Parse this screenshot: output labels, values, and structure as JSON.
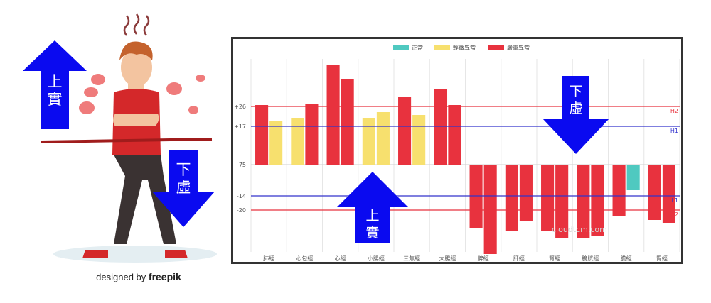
{
  "illustration": {
    "up_label": "上\n實",
    "down_label": "下\n虛",
    "credit_prefix": "designed by",
    "credit_brand": "freepik"
  },
  "chart_data": {
    "type": "bar",
    "legend": [
      {
        "name": "正常",
        "color": "#4fc9c0"
      },
      {
        "name": "輕微異常",
        "color": "#f7e06e"
      },
      {
        "name": "嚴重異常",
        "color": "#e8323e"
      }
    ],
    "legend_position": "top-center",
    "categories": [
      "肺經",
      "心包經",
      "心經",
      "小腸經",
      "三焦經",
      "大腸經",
      "脾經",
      "肝經",
      "腎經",
      "膀胱經",
      "膽經",
      "胃經"
    ],
    "bars": [
      [
        {
          "value": 42,
          "status": "嚴重異常"
        },
        {
          "value": 31,
          "status": "輕微異常"
        }
      ],
      [
        {
          "value": 33,
          "status": "輕微異常"
        },
        {
          "value": 43,
          "status": "嚴重異常"
        }
      ],
      [
        {
          "value": 70,
          "status": "嚴重異常"
        },
        {
          "value": 60,
          "status": "嚴重異常"
        }
      ],
      [
        {
          "value": 33,
          "status": "輕微異常"
        },
        {
          "value": 37,
          "status": "輕微異常"
        }
      ],
      [
        {
          "value": 48,
          "status": "嚴重異常"
        },
        {
          "value": 35,
          "status": "輕微異常"
        }
      ],
      [
        {
          "value": 53,
          "status": "嚴重異常"
        },
        {
          "value": 42,
          "status": "嚴重異常"
        }
      ],
      [
        {
          "value": -45,
          "status": "嚴重異常"
        },
        {
          "value": -63,
          "status": "嚴重異常"
        }
      ],
      [
        {
          "value": -47,
          "status": "嚴重異常"
        },
        {
          "value": -40,
          "status": "嚴重異常"
        }
      ],
      [
        {
          "value": -47,
          "status": "嚴重異常"
        },
        {
          "value": -52,
          "status": "嚴重異常"
        }
      ],
      [
        {
          "value": -52,
          "status": "嚴重異常"
        },
        {
          "value": -50,
          "status": "嚴重異常"
        }
      ],
      [
        {
          "value": -36,
          "status": "嚴重異常"
        },
        {
          "value": -18,
          "status": "正常"
        }
      ],
      [
        {
          "value": -39,
          "status": "嚴重異常"
        },
        {
          "value": -41,
          "status": "嚴重異常"
        }
      ]
    ],
    "y_ticks": [
      {
        "label": "+26",
        "value": 41
      },
      {
        "label": "+17",
        "value": 27
      },
      {
        "label": "75",
        "value": 0
      },
      {
        "label": "-14",
        "value": -22
      },
      {
        "label": "-20",
        "value": -32
      }
    ],
    "reference_lines": [
      {
        "label": "H2",
        "value": 41,
        "color": "#e8323e"
      },
      {
        "label": "H1",
        "value": 27,
        "color": "#3333cc"
      },
      {
        "label": "L1",
        "value": -22,
        "color": "#3333cc"
      },
      {
        "label": "L2",
        "value": -32,
        "color": "#e8323e"
      }
    ],
    "annotations": [
      {
        "text": "下\n虛",
        "direction": "down"
      },
      {
        "text": "上\n實",
        "direction": "up"
      }
    ],
    "watermark": "cloudtcm.com",
    "grid": true
  }
}
